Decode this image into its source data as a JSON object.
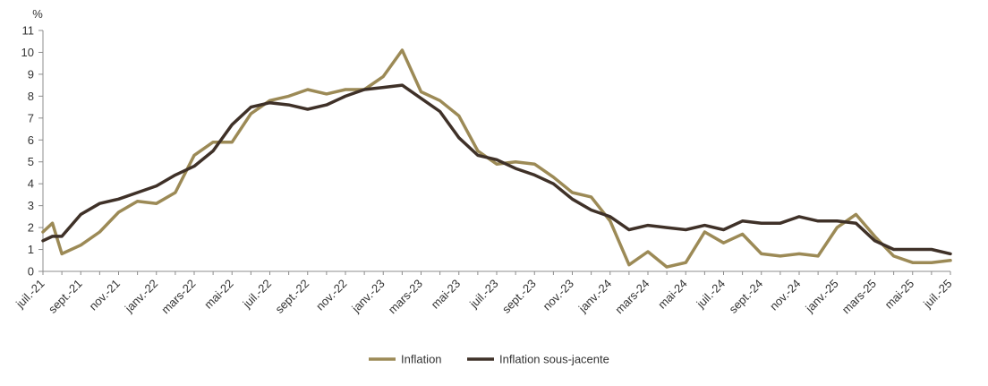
{
  "chart_data": {
    "type": "line",
    "ylabel": "%",
    "ylim": [
      0,
      11
    ],
    "yticks": [
      0,
      1,
      2,
      3,
      4,
      5,
      6,
      7,
      8,
      9,
      10,
      11
    ],
    "x": [
      "juil.-21",
      "août-21",
      "sept.-21",
      "oct.-21",
      "nov.-21",
      "déc.-21",
      "janv.-22",
      "févr.-22",
      "mars-22",
      "avr.-22",
      "mai-22",
      "juin-22",
      "juil.-22",
      "août-22",
      "sept.-22",
      "oct.-22",
      "nov.-22",
      "déc.-22",
      "janv.-23",
      "févr.-23",
      "mars-23",
      "avr.-23",
      "mai-23",
      "juin-23",
      "juil.-23",
      "août-23",
      "sept.-23",
      "oct.-23",
      "nov.-23",
      "déc.-23",
      "janv.-24",
      "févr.-24",
      "mars-24",
      "avr.-24",
      "mai-24",
      "juin-24",
      "juil.-24",
      "août-24",
      "sept.-24",
      "oct.-24",
      "nov.-24",
      "déc.-24",
      "janv.-25",
      "févr.-25",
      "mars-25",
      "avr.-25",
      "mai-25",
      "juin-25",
      "juil.-25"
    ],
    "xtick_labels": [
      "juil.-21",
      "sept.-21",
      "nov.-21",
      "janv.-22",
      "mars-22",
      "mai-22",
      "juil.-22",
      "sept.-22",
      "nov.-22",
      "janv.-23",
      "mars-23",
      "mai-23",
      "juil.-23",
      "sept.-23",
      "nov.-23",
      "janv.-24",
      "mars-24",
      "mai-24",
      "juil.-24",
      "sept.-24",
      "nov.-24",
      "janv.-25",
      "mars-25",
      "mai-25",
      "juil.-25"
    ],
    "series": [
      {
        "name": "Inflation",
        "color": "#9c8a56",
        "points": [
          [
            "juil.-21",
            1.8
          ],
          [
            "juil.-21",
            2.2
          ],
          [
            "août-21",
            0.8
          ],
          [
            "sept.-21",
            1.2
          ],
          [
            "oct.-21",
            1.8
          ],
          [
            "nov.-21",
            2.7
          ],
          [
            "déc.-21",
            3.2
          ],
          [
            "janv.-22",
            3.1
          ],
          [
            "févr.-22",
            3.6
          ],
          [
            "mars-22",
            5.3
          ],
          [
            "avr.-22",
            5.9
          ],
          [
            "mai-22",
            5.9
          ],
          [
            "juin-22",
            7.2
          ],
          [
            "juil.-22",
            7.8
          ],
          [
            "août-22",
            8.0
          ],
          [
            "sept.-22",
            8.3
          ],
          [
            "oct.-22",
            8.1
          ],
          [
            "nov.-22",
            8.3
          ],
          [
            "déc.-22",
            8.3
          ],
          [
            "janv.-23",
            8.9
          ],
          [
            "févr.-23",
            10.1
          ],
          [
            "mars-23",
            8.2
          ],
          [
            "avr.-23",
            7.8
          ],
          [
            "mai-23",
            7.1
          ],
          [
            "juin-23",
            5.5
          ],
          [
            "juil.-23",
            4.9
          ],
          [
            "août-23",
            5.0
          ],
          [
            "sept.-23",
            4.9
          ],
          [
            "oct.-23",
            4.3
          ],
          [
            "nov.-23",
            3.6
          ],
          [
            "déc.-23",
            3.4
          ],
          [
            "janv.-24",
            2.3
          ],
          [
            "févr.-24",
            0.3
          ],
          [
            "mars-24",
            0.9
          ],
          [
            "avr.-24",
            0.2
          ],
          [
            "mai-24",
            0.4
          ],
          [
            "juin-24",
            1.8
          ],
          [
            "juil.-24",
            1.3
          ],
          [
            "août-24",
            1.7
          ],
          [
            "sept.-24",
            0.8
          ],
          [
            "oct.-24",
            0.7
          ],
          [
            "nov.-24",
            0.8
          ],
          [
            "déc.-24",
            0.7
          ],
          [
            "janv.-25",
            2.0
          ],
          [
            "févr.-25",
            2.6
          ],
          [
            "mars-25",
            1.6
          ],
          [
            "avr.-25",
            0.7
          ],
          [
            "mai-25",
            0.4
          ],
          [
            "juin-25",
            0.4
          ],
          [
            "juil.-25",
            0.5
          ]
        ]
      },
      {
        "name": "Inflation sous-jacente",
        "color": "#3f3128",
        "points": [
          [
            "juil.-21",
            1.4
          ],
          [
            "juil.-21",
            1.6
          ],
          [
            "août-21",
            1.6
          ],
          [
            "sept.-21",
            2.6
          ],
          [
            "oct.-21",
            3.1
          ],
          [
            "nov.-21",
            3.3
          ],
          [
            "déc.-21",
            3.6
          ],
          [
            "janv.-22",
            3.9
          ],
          [
            "févr.-22",
            4.4
          ],
          [
            "mars-22",
            4.8
          ],
          [
            "avr.-22",
            5.5
          ],
          [
            "mai-22",
            6.7
          ],
          [
            "juin-22",
            7.5
          ],
          [
            "juil.-22",
            7.7
          ],
          [
            "août-22",
            7.6
          ],
          [
            "sept.-22",
            7.4
          ],
          [
            "oct.-22",
            7.6
          ],
          [
            "nov.-22",
            8.0
          ],
          [
            "déc.-22",
            8.3
          ],
          [
            "janv.-23",
            8.4
          ],
          [
            "févr.-23",
            8.5
          ],
          [
            "mars-23",
            7.9
          ],
          [
            "avr.-23",
            7.3
          ],
          [
            "mai-23",
            6.1
          ],
          [
            "juin-23",
            5.3
          ],
          [
            "juil.-23",
            5.1
          ],
          [
            "août-23",
            4.7
          ],
          [
            "sept.-23",
            4.4
          ],
          [
            "oct.-23",
            4.0
          ],
          [
            "nov.-23",
            3.3
          ],
          [
            "déc.-23",
            2.8
          ],
          [
            "janv.-24",
            2.5
          ],
          [
            "févr.-24",
            1.9
          ],
          [
            "mars-24",
            2.1
          ],
          [
            "avr.-24",
            2.0
          ],
          [
            "mai-24",
            1.9
          ],
          [
            "juin-24",
            2.1
          ],
          [
            "juil.-24",
            1.9
          ],
          [
            "août-24",
            2.3
          ],
          [
            "sept.-24",
            2.2
          ],
          [
            "oct.-24",
            2.2
          ],
          [
            "nov.-24",
            2.5
          ],
          [
            "déc.-24",
            2.3
          ],
          [
            "janv.-25",
            2.3
          ],
          [
            "févr.-25",
            2.2
          ],
          [
            "mars-25",
            1.4
          ],
          [
            "avr.-25",
            1.0
          ],
          [
            "mai-25",
            1.0
          ],
          [
            "juin-25",
            1.0
          ],
          [
            "juil.-25",
            0.8
          ]
        ]
      }
    ],
    "grid": false,
    "legend": "bottom-center",
    "legend_entries": [
      "Inflation",
      "Inflation sous-jacente"
    ]
  }
}
